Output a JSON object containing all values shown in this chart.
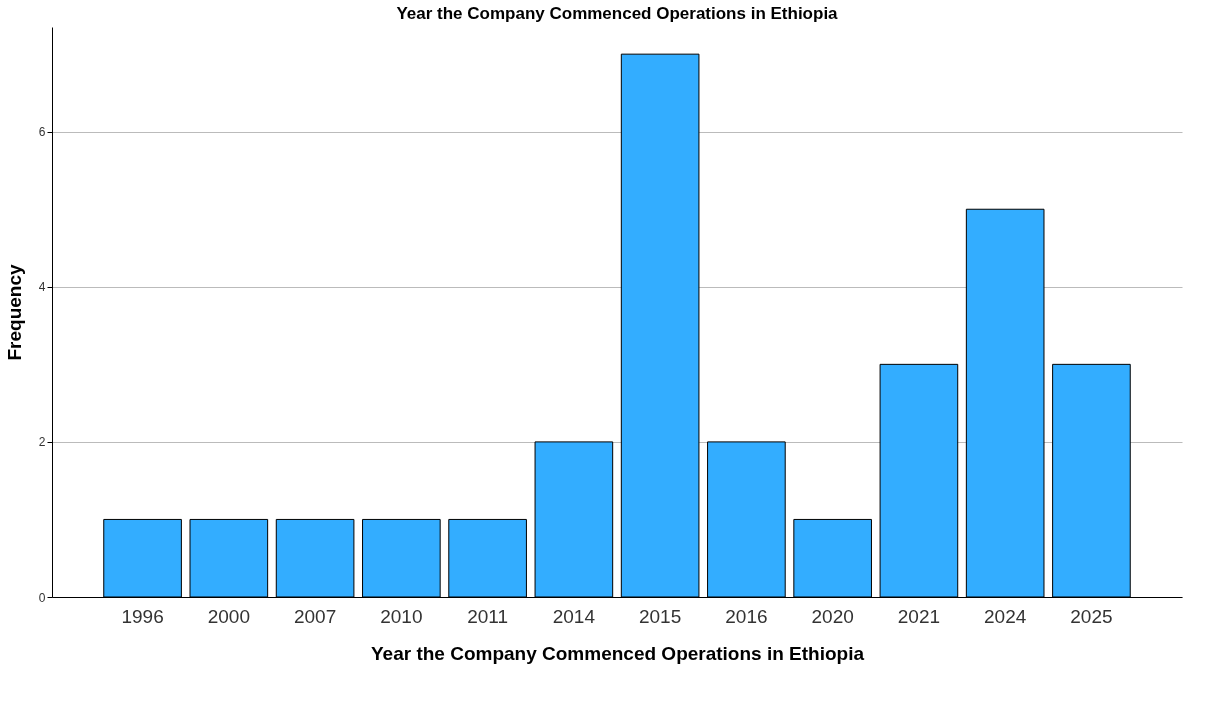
{
  "chart_data": {
    "type": "bar",
    "title": "Year the Company Commenced Operations in Ethiopia",
    "xlabel": "Year the Company Commenced Operations in Ethiopia",
    "ylabel": "Frequency",
    "categories": [
      "1996",
      "2000",
      "2007",
      "2010",
      "2011",
      "2014",
      "2015",
      "2016",
      "2020",
      "2021",
      "2024",
      "2025"
    ],
    "values": [
      1,
      1,
      1,
      1,
      1,
      2,
      7,
      2,
      1,
      3,
      5,
      3
    ],
    "color": "#33adff",
    "ylim": [
      0,
      7.35
    ],
    "yticks": [
      0,
      2,
      4,
      6
    ],
    "grid": "y"
  }
}
